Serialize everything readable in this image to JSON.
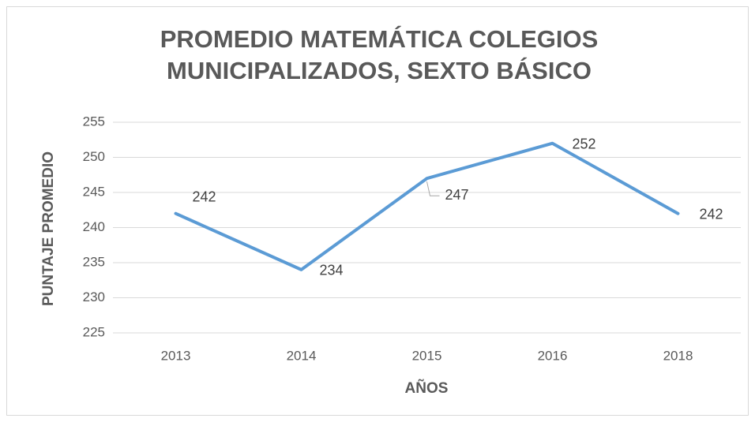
{
  "chart_data": {
    "type": "line",
    "title": "PROMEDIO MATEMÁTICA COLEGIOS MUNICIPALIZADOS, SEXTO BÁSICO",
    "x_label": "AÑOS",
    "y_label": "PUNTAJE PROMEDIO",
    "categories": [
      "2013",
      "2014",
      "2015",
      "2016",
      "2018"
    ],
    "values": [
      242,
      234,
      247,
      252,
      242
    ],
    "color": "#5b9bd5",
    "ylim": [
      225,
      255
    ],
    "yticks": [
      225,
      230,
      235,
      240,
      245,
      250,
      255
    ],
    "grid": true
  }
}
